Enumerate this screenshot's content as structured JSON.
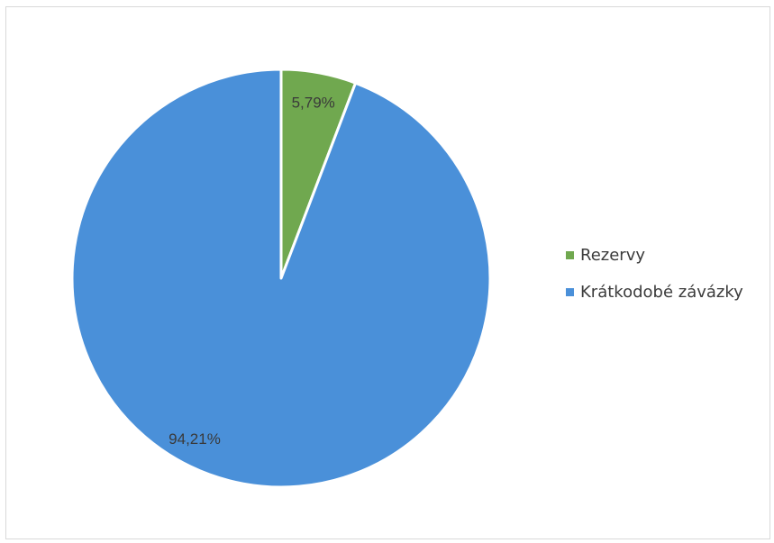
{
  "chart_data": {
    "type": "pie",
    "title": "",
    "legend_position": "right",
    "slices": [
      {
        "name": "Rezervy",
        "value": 5.79,
        "label": "5,79%",
        "color": "#70a84f"
      },
      {
        "name": "Krátkodobé závázky",
        "value": 94.21,
        "label": "94,21%",
        "color": "#4a90d9"
      }
    ]
  }
}
